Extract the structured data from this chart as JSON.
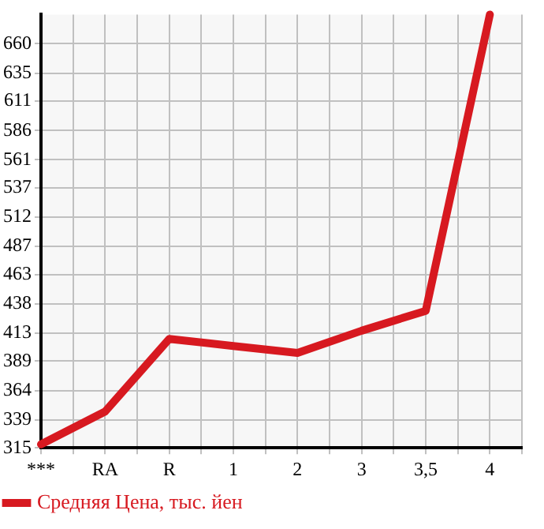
{
  "chart_data": {
    "type": "line",
    "categories": [
      "***",
      "RA",
      "R",
      "1",
      "2",
      "3",
      "3,5",
      "4"
    ],
    "series": [
      {
        "name": "Средняя Цена, тыс. йен",
        "color": "#d71920",
        "values": [
          318,
          346,
          408,
          402,
          396,
          415,
          432,
          685
        ]
      }
    ],
    "ylim": [
      315,
      685
    ],
    "yticks": [
      315,
      339,
      364,
      389,
      413,
      438,
      463,
      487,
      512,
      537,
      561,
      586,
      611,
      635,
      660
    ],
    "grid": true,
    "legend": "bottom left",
    "marker": "none",
    "line_style": "solid"
  }
}
